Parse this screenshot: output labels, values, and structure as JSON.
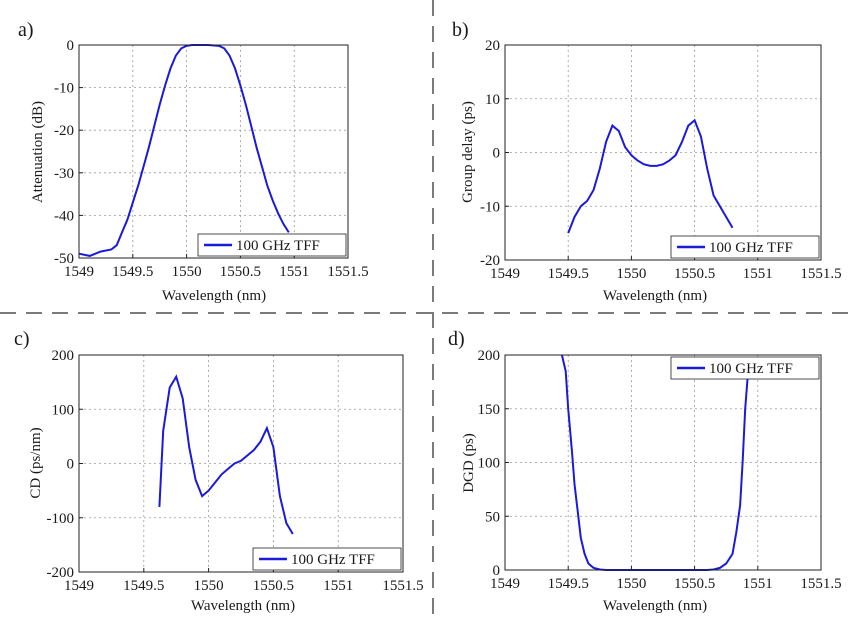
{
  "chart_data": [
    {
      "type": "line",
      "panel_label": "a)",
      "xlabel": "Wavelength (nm)",
      "ylabel": "Attenuation (dB)",
      "xlim": [
        1549,
        1551.5
      ],
      "ylim": [
        -50,
        0
      ],
      "xticks": [
        1549,
        1549.5,
        1550,
        1550.5,
        1551,
        1551.5
      ],
      "xtick_labels": [
        "1549",
        "1549.5",
        "1550",
        "1550.5",
        "1551",
        "1551.5"
      ],
      "yticks": [
        -50,
        -40,
        -30,
        -20,
        -10,
        0
      ],
      "ytick_labels": [
        "-50",
        "-40",
        "-30",
        "-20",
        "-10",
        "0"
      ],
      "grid": true,
      "legend_position": "bottom-right",
      "series": [
        {
          "name": "100 GHz TFF",
          "color": "#1a1adb",
          "x": [
            1549,
            1549.1,
            1549.2,
            1549.3,
            1549.35,
            1549.4,
            1549.45,
            1549.5,
            1549.55,
            1549.6,
            1549.65,
            1549.7,
            1549.75,
            1549.8,
            1549.85,
            1549.9,
            1549.95,
            1550,
            1550.05,
            1550.1,
            1550.2,
            1550.3,
            1550.35,
            1550.4,
            1550.45,
            1550.5,
            1550.55,
            1550.6,
            1550.65,
            1550.7,
            1550.75,
            1550.8,
            1550.85,
            1550.9,
            1550.95
          ],
          "y": [
            -49,
            -49.5,
            -48.5,
            -48,
            -47,
            -44,
            -41,
            -37,
            -33,
            -28.5,
            -24,
            -19,
            -14,
            -9.5,
            -5.5,
            -2.5,
            -0.8,
            -0.2,
            0,
            0,
            0,
            -0.2,
            -0.8,
            -2.5,
            -5.5,
            -9.5,
            -14,
            -19,
            -24,
            -28.5,
            -33,
            -36.5,
            -39.5,
            -42,
            -44
          ]
        }
      ]
    },
    {
      "type": "line",
      "panel_label": "b)",
      "xlabel": "Wavelength (nm)",
      "ylabel": "Group delay (ps)",
      "xlim": [
        1549,
        1551.5
      ],
      "ylim": [
        -20,
        20
      ],
      "xticks": [
        1549,
        1549.5,
        1550,
        1550.5,
        1551,
        1551.5
      ],
      "xtick_labels": [
        "1549",
        "1549.5",
        "1550",
        "1550.5",
        "1551",
        "1551.5"
      ],
      "yticks": [
        -20,
        -10,
        0,
        10,
        20
      ],
      "ytick_labels": [
        "-20",
        "-10",
        "0",
        "10",
        "20"
      ],
      "grid": true,
      "legend_position": "bottom-right",
      "series": [
        {
          "name": "100 GHz TFF",
          "color": "#1a1adb",
          "x": [
            1549.5,
            1549.55,
            1549.6,
            1549.65,
            1549.7,
            1549.75,
            1549.8,
            1549.85,
            1549.9,
            1549.95,
            1550,
            1550.05,
            1550.1,
            1550.15,
            1550.2,
            1550.25,
            1550.3,
            1550.35,
            1550.4,
            1550.45,
            1550.5,
            1550.55,
            1550.6,
            1550.65,
            1550.7,
            1550.75,
            1550.8
          ],
          "y": [
            -15,
            -12,
            -10,
            -9,
            -7,
            -3,
            2,
            5,
            4,
            1,
            -0.5,
            -1.5,
            -2.2,
            -2.5,
            -2.5,
            -2.2,
            -1.5,
            -0.5,
            2,
            5,
            6,
            3,
            -3,
            -8,
            -10,
            -12,
            -14
          ]
        }
      ]
    },
    {
      "type": "line",
      "panel_label": "c)",
      "xlabel": "Wavelength (nm)",
      "ylabel": "CD (ps/nm)",
      "xlim": [
        1549,
        1551.5
      ],
      "ylim": [
        -200,
        200
      ],
      "xticks": [
        1549,
        1549.5,
        1550,
        1550.5,
        1551,
        1551.5
      ],
      "xtick_labels": [
        "1549",
        "1549.5",
        "1550",
        "1550.5",
        "1551",
        "1551.5"
      ],
      "yticks": [
        -200,
        -100,
        0,
        100,
        200
      ],
      "ytick_labels": [
        "-200",
        "-100",
        "0",
        "100",
        "200"
      ],
      "grid": true,
      "legend_position": "bottom-right",
      "series": [
        {
          "name": "100 GHz TFF",
          "color": "#1a1adb",
          "x": [
            1549.62,
            1549.65,
            1549.7,
            1549.75,
            1549.8,
            1549.85,
            1549.9,
            1549.95,
            1550,
            1550.05,
            1550.1,
            1550.15,
            1550.2,
            1550.25,
            1550.3,
            1550.35,
            1550.4,
            1550.45,
            1550.5,
            1550.55,
            1550.6,
            1550.65
          ],
          "y": [
            -80,
            60,
            140,
            160,
            120,
            30,
            -30,
            -60,
            -50,
            -35,
            -20,
            -10,
            0,
            5,
            15,
            25,
            40,
            65,
            30,
            -60,
            -110,
            -130
          ]
        }
      ]
    },
    {
      "type": "line",
      "panel_label": "d)",
      "xlabel": "Wavelength (nm)",
      "ylabel": "DGD (ps)",
      "xlim": [
        1549,
        1551.5
      ],
      "ylim": [
        0,
        200
      ],
      "xticks": [
        1549,
        1549.5,
        1550,
        1550.5,
        1551,
        1551.5
      ],
      "xtick_labels": [
        "1549",
        "1549.5",
        "1550",
        "1550.5",
        "1551",
        "1551.5"
      ],
      "yticks": [
        0,
        50,
        100,
        150,
        200
      ],
      "ytick_labels": [
        "0",
        "50",
        "100",
        "150",
        "200"
      ],
      "grid": true,
      "legend_position": "top-right",
      "series": [
        {
          "name": "100 GHz TFF",
          "color": "#1a1adb",
          "x": [
            1549.45,
            1549.48,
            1549.5,
            1549.53,
            1549.55,
            1549.58,
            1549.6,
            1549.63,
            1549.66,
            1549.7,
            1549.75,
            1549.8,
            1550,
            1550.2,
            1550.4,
            1550.6,
            1550.65,
            1550.7,
            1550.75,
            1550.8,
            1550.83,
            1550.86,
            1550.88,
            1550.9,
            1550.92
          ],
          "y": [
            200,
            185,
            150,
            110,
            80,
            50,
            30,
            15,
            6,
            2,
            0.5,
            0,
            0,
            0,
            0,
            0,
            0.5,
            2,
            6,
            15,
            35,
            60,
            100,
            150,
            180
          ]
        }
      ]
    }
  ]
}
